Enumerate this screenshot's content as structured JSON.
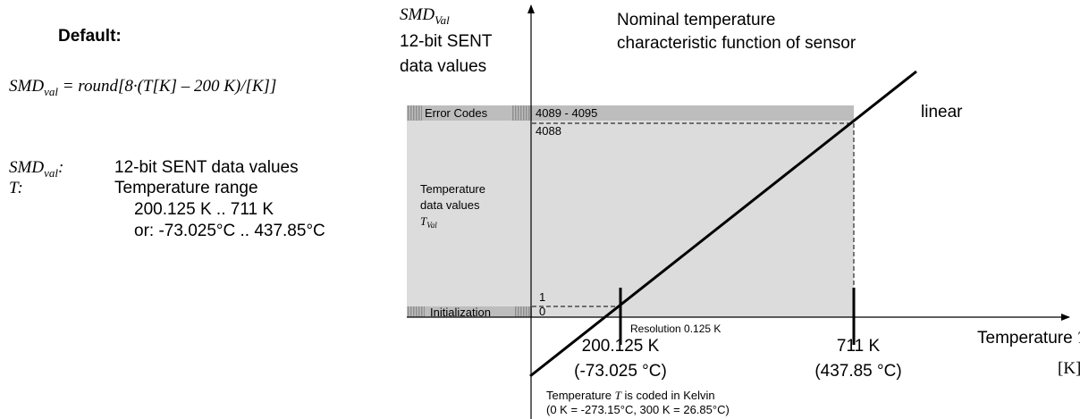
{
  "default_label": "Default:",
  "formula": {
    "symbol": "SMD",
    "subscript": "val",
    "expression": " = round[8·(T[K] – 200 K)/[K]]"
  },
  "definitions": [
    {
      "symbol": "SMD",
      "subscript": "val",
      "colon": ":",
      "lines": [
        "12-bit SENT data values"
      ]
    },
    {
      "symbol": "T:",
      "lines": [
        "Temperature range",
        "200.125 K .. 711 K",
        "or: -73.025°C .. 437.85°C"
      ]
    }
  ],
  "diagram": {
    "y_axis_title": {
      "symbol": "SMD",
      "subscript": "Val",
      "lines": [
        "12-bit SENT",
        "data values"
      ]
    },
    "curve_title": [
      "Nominal temperature",
      "characteristic function of sensor"
    ],
    "curve_label": "linear",
    "bands": {
      "error": {
        "label": "Error Codes",
        "range": "4089 - 4095"
      },
      "max": "4088",
      "data": {
        "lines": [
          "Temperature",
          "data values"
        ],
        "symbol": "T",
        "subscript": "Val"
      },
      "one": "1",
      "zero": "0",
      "init": "Initialization"
    },
    "resolution": "Resolution 0.125 K",
    "x_ticks": [
      {
        "kelvin": "200.125 K",
        "celsius": "(-73.025 °C)"
      },
      {
        "kelvin": "711 K",
        "celsius": "(437.85 °C)"
      }
    ],
    "x_axis_title": {
      "text": "Temperature ",
      "symbol": "T",
      "unit": "[K]"
    },
    "note": {
      "prefix": "Temperature ",
      "symbol": "T",
      "suffix": " is coded in Kelvin",
      "line2": "(0 K = -273.15°C, 300 K = 26.85°C)"
    }
  }
}
